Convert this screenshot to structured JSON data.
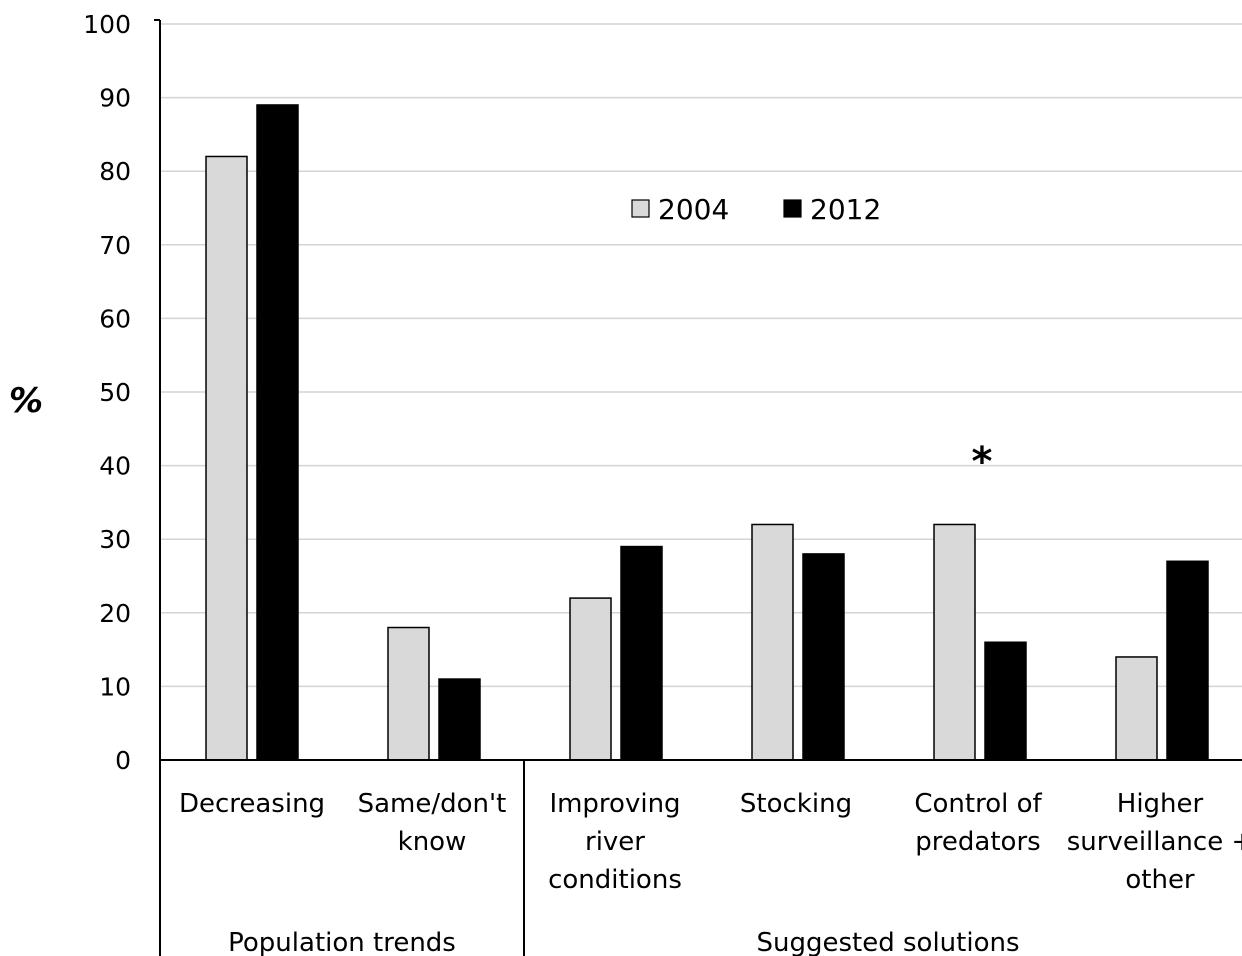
{
  "chart_data": {
    "type": "bar",
    "title": "",
    "xlabel": "",
    "ylabel": "%",
    "ylim": [
      0,
      100
    ],
    "yticks": [
      0,
      10,
      20,
      30,
      40,
      50,
      60,
      70,
      80,
      90,
      100
    ],
    "grid": true,
    "legend_position": "top-center",
    "categories": [
      "Decreasing",
      "Same/don't know",
      "Improving river conditions",
      "Stocking",
      "Control of predators",
      "Higher surveillance + other"
    ],
    "category_lines": [
      [
        "Decreasing"
      ],
      [
        "Same/don't",
        "know"
      ],
      [
        "Improving",
        "river",
        "conditions"
      ],
      [
        "Stocking"
      ],
      [
        "Control of",
        "predators"
      ],
      [
        "Higher",
        "surveillance +",
        "other"
      ]
    ],
    "groups": [
      {
        "label": "Population trends",
        "categories": [
          0,
          1
        ]
      },
      {
        "label": "Suggested solutions",
        "categories": [
          2,
          3,
          4,
          5
        ]
      }
    ],
    "series": [
      {
        "name": "2004",
        "color": "#d9d9d9",
        "values": [
          82,
          18,
          22,
          32,
          32,
          14
        ]
      },
      {
        "name": "2012",
        "color": "#000000",
        "values": [
          89,
          11,
          29,
          28,
          16,
          27
        ]
      }
    ],
    "annotations": [
      {
        "text": "*",
        "category_index": 4,
        "y": 42
      }
    ]
  }
}
